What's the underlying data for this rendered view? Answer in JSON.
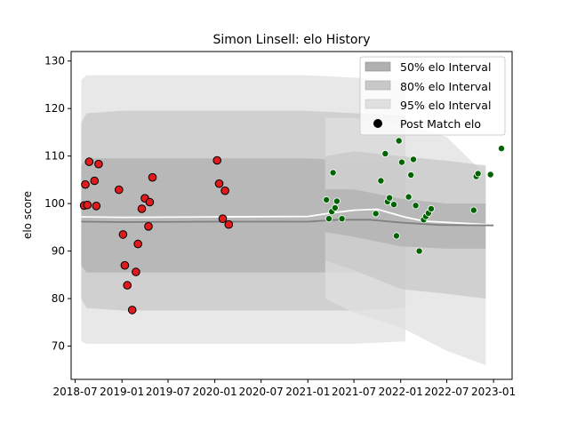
{
  "chart_data": {
    "type": "scatter",
    "title": "Simon Linsell: elo History",
    "xlabel": "",
    "ylabel": "elo score",
    "xlim": [
      "2018-06-15",
      "2023-03-15"
    ],
    "ylim": [
      63,
      132
    ],
    "x_ticks": [
      "2018-07",
      "2019-01",
      "2019-07",
      "2020-01",
      "2020-07",
      "2021-01",
      "2021-07",
      "2022-01",
      "2022-07",
      "2023-01"
    ],
    "y_ticks": [
      70,
      80,
      90,
      100,
      110,
      120,
      130
    ],
    "legend_position": "upper right",
    "legend": [
      {
        "label": "50% elo Interval",
        "kind": "patch",
        "color": "#b0b0b0"
      },
      {
        "label": "80% elo Interval",
        "kind": "patch",
        "color": "#c8c8c8"
      },
      {
        "label": "95% elo Interval",
        "kind": "patch",
        "color": "#e0e0e0"
      },
      {
        "label": "Post Match elo",
        "kind": "marker",
        "color": "#000000"
      }
    ],
    "bands": {
      "colors": {
        "50": "#b0b0b0",
        "80": "#c8c8c8",
        "95": "#e0e0e0"
      },
      "segments": [
        {
          "name": "era-1",
          "x": [
            "2018-07-25",
            "2018-08-15",
            "2019-01-01",
            "2019-07-01",
            "2020-01-01",
            "2020-07-01",
            "2021-01-01",
            "2021-07-01",
            "2022-01-20",
            "2022-01-20"
          ],
          "mean": [
            97,
            96.8,
            96.5,
            96.3,
            96.2,
            96.2,
            96.3,
            96.4,
            96.4,
            96.4
          ],
          "lo50": [
            87,
            85.5,
            85.5,
            85.5,
            85.5,
            85.5,
            85.5,
            85.5,
            86,
            86
          ],
          "hi50": [
            108,
            109.5,
            109.5,
            109.5,
            109.5,
            109.5,
            109.5,
            109,
            108.5,
            108.5
          ],
          "lo80": [
            80,
            78,
            77.5,
            77.5,
            77.5,
            77.5,
            77.5,
            77.5,
            78,
            78
          ],
          "hi80": [
            117,
            119,
            119.5,
            119.5,
            119.5,
            119.5,
            119.5,
            119,
            118.5,
            118.5
          ],
          "lo95": [
            71,
            70.5,
            70.5,
            70.5,
            70.5,
            70.5,
            70.5,
            70.5,
            71,
            71
          ],
          "hi95": [
            126,
            127,
            127,
            127,
            127,
            127,
            127,
            126.5,
            126,
            126
          ]
        },
        {
          "name": "era-2",
          "x": [
            "2021-03-10",
            "2021-07-01",
            "2022-01-01",
            "2022-07-01",
            "2022-12-01"
          ],
          "mean": [
            98,
            98.5,
            96.5,
            95.8,
            95.4
          ],
          "lo50": [
            94,
            93,
            91,
            90.5,
            90.5
          ],
          "hi50": [
            103,
            103,
            101,
            100,
            100
          ],
          "lo80": [
            88,
            86,
            82,
            81,
            80
          ],
          "hi80": [
            110,
            111,
            110,
            109,
            108
          ],
          "lo95": [
            80,
            77,
            74,
            69,
            66
          ],
          "hi95": [
            118,
            118,
            117,
            114,
            106
          ]
        }
      ]
    },
    "lines": [
      {
        "name": "mean-light",
        "color": "#ffffff",
        "x": [
          "2018-07-25",
          "2019-01-01",
          "2020-01-01",
          "2021-01-01",
          "2021-04-01",
          "2021-07-01",
          "2021-10-01",
          "2022-01-15",
          "2022-04-01",
          "2023-01-01"
        ],
        "y": [
          97.2,
          97.1,
          97.2,
          97.3,
          98,
          98.6,
          98.8,
          97.2,
          96.3,
          95.5
        ]
      },
      {
        "name": "mean-dark",
        "color": "#808080",
        "x": [
          "2018-07-25",
          "2019-01-01",
          "2020-01-01",
          "2021-01-01",
          "2021-05-01",
          "2021-09-01",
          "2022-01-01",
          "2022-06-01",
          "2023-01-01"
        ],
        "y": [
          96.2,
          96.1,
          96.2,
          96.2,
          96.6,
          96.6,
          96.0,
          95.5,
          95.4
        ]
      }
    ],
    "series": [
      {
        "name": "Post Match elo (early)",
        "color": "#e31a1c",
        "points": [
          {
            "x": "2018-08-05",
            "y": 99.6
          },
          {
            "x": "2018-08-10",
            "y": 104.0
          },
          {
            "x": "2018-08-18",
            "y": 99.7
          },
          {
            "x": "2018-08-25",
            "y": 108.8
          },
          {
            "x": "2018-09-15",
            "y": 104.8
          },
          {
            "x": "2018-09-22",
            "y": 99.5
          },
          {
            "x": "2018-10-01",
            "y": 108.3
          },
          {
            "x": "2018-12-20",
            "y": 102.9
          },
          {
            "x": "2019-01-05",
            "y": 93.5
          },
          {
            "x": "2019-01-12",
            "y": 87.0
          },
          {
            "x": "2019-01-22",
            "y": 82.8
          },
          {
            "x": "2019-02-10",
            "y": 77.6
          },
          {
            "x": "2019-02-25",
            "y": 85.6
          },
          {
            "x": "2019-03-05",
            "y": 91.5
          },
          {
            "x": "2019-03-20",
            "y": 98.9
          },
          {
            "x": "2019-04-01",
            "y": 101.1
          },
          {
            "x": "2019-04-15",
            "y": 95.2
          },
          {
            "x": "2019-04-20",
            "y": 100.3
          },
          {
            "x": "2019-05-01",
            "y": 105.5
          },
          {
            "x": "2020-01-10",
            "y": 109.1
          },
          {
            "x": "2020-01-18",
            "y": 104.2
          },
          {
            "x": "2020-02-01",
            "y": 96.8
          },
          {
            "x": "2020-02-10",
            "y": 102.7
          },
          {
            "x": "2020-02-25",
            "y": 95.6
          }
        ]
      },
      {
        "name": "Post Match elo (late)",
        "color": "#006400",
        "points": [
          {
            "x": "2021-03-15",
            "y": 100.8
          },
          {
            "x": "2021-03-25",
            "y": 96.8
          },
          {
            "x": "2021-04-05",
            "y": 98.3
          },
          {
            "x": "2021-04-10",
            "y": 106.5
          },
          {
            "x": "2021-04-18",
            "y": 99.1
          },
          {
            "x": "2021-04-25",
            "y": 100.5
          },
          {
            "x": "2021-05-15",
            "y": 96.8
          },
          {
            "x": "2021-09-25",
            "y": 97.9
          },
          {
            "x": "2021-10-15",
            "y": 104.8
          },
          {
            "x": "2021-11-01",
            "y": 110.5
          },
          {
            "x": "2021-11-10",
            "y": 100.4
          },
          {
            "x": "2021-11-18",
            "y": 101.2
          },
          {
            "x": "2021-12-05",
            "y": 99.8
          },
          {
            "x": "2021-12-15",
            "y": 93.2
          },
          {
            "x": "2021-12-25",
            "y": 113.2
          },
          {
            "x": "2022-01-05",
            "y": 108.7
          },
          {
            "x": "2022-02-01",
            "y": 101.4
          },
          {
            "x": "2022-02-10",
            "y": 106.0
          },
          {
            "x": "2022-02-20",
            "y": 109.3
          },
          {
            "x": "2022-03-01",
            "y": 99.6
          },
          {
            "x": "2022-03-15",
            "y": 90.0
          },
          {
            "x": "2022-04-01",
            "y": 96.6
          },
          {
            "x": "2022-04-10",
            "y": 97.3
          },
          {
            "x": "2022-04-20",
            "y": 98.0
          },
          {
            "x": "2022-05-01",
            "y": 98.9
          },
          {
            "x": "2022-10-15",
            "y": 98.6
          },
          {
            "x": "2022-10-25",
            "y": 105.7
          },
          {
            "x": "2022-11-01",
            "y": 106.3
          },
          {
            "x": "2022-12-20",
            "y": 106.1
          },
          {
            "x": "2023-02-01",
            "y": 111.6
          }
        ]
      }
    ]
  }
}
